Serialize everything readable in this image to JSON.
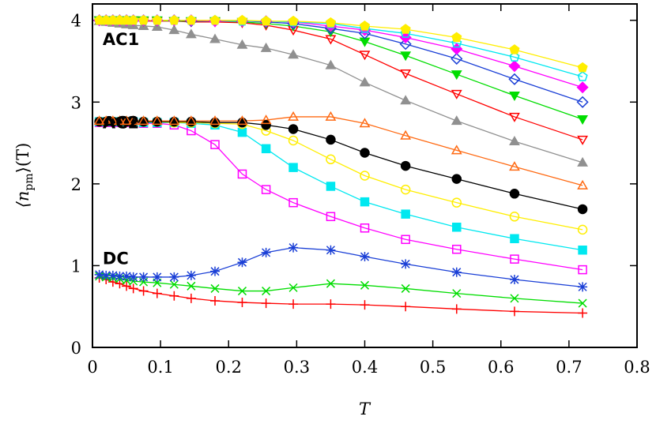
{
  "chart_data": {
    "type": "line",
    "xlabel": "T",
    "ylabel": [
      "⟨n",
      "pm",
      "⟩(T)"
    ],
    "annotations": [
      {
        "text": "AC1",
        "x": 0.015,
        "y": 3.7
      },
      {
        "text": "AC2",
        "x": 0.015,
        "y": 2.68
      },
      {
        "text": "DC",
        "x": 0.015,
        "y": 1.02
      }
    ],
    "xlim": [
      0,
      0.8
    ],
    "ylim": [
      0,
      4.2
    ],
    "xticks": [
      0,
      0.1,
      0.2,
      0.3,
      0.4,
      0.5,
      0.6,
      0.7,
      0.8
    ],
    "yticks": [
      0,
      1,
      2,
      3,
      4
    ],
    "grid": false,
    "x": [
      0.01,
      0.02,
      0.03,
      0.04,
      0.05,
      0.06,
      0.075,
      0.095,
      0.12,
      0.145,
      0.18,
      0.22,
      0.255,
      0.295,
      0.35,
      0.4,
      0.46,
      0.535,
      0.62,
      0.72
    ],
    "series": [
      {
        "color": "#ff0000",
        "marker": "plus",
        "values": [
          0.85,
          0.83,
          0.8,
          0.78,
          0.75,
          0.72,
          0.69,
          0.66,
          0.63,
          0.6,
          0.57,
          0.55,
          0.54,
          0.53,
          0.53,
          0.52,
          0.5,
          0.47,
          0.44,
          0.42
        ]
      },
      {
        "color": "#00dd00",
        "marker": "cross",
        "values": [
          0.87,
          0.86,
          0.85,
          0.84,
          0.82,
          0.81,
          0.8,
          0.79,
          0.77,
          0.75,
          0.72,
          0.69,
          0.69,
          0.73,
          0.78,
          0.76,
          0.72,
          0.66,
          0.6,
          0.54
        ]
      },
      {
        "color": "#1a3fd6",
        "marker": "star",
        "values": [
          0.89,
          0.88,
          0.88,
          0.87,
          0.87,
          0.86,
          0.86,
          0.86,
          0.86,
          0.88,
          0.93,
          1.04,
          1.16,
          1.22,
          1.19,
          1.11,
          1.02,
          0.92,
          0.83,
          0.74
        ]
      },
      {
        "color": "#ff00ff",
        "marker": "square-open",
        "values": [
          2.75,
          2.75,
          2.75,
          2.75,
          2.75,
          2.75,
          2.74,
          2.74,
          2.72,
          2.65,
          2.48,
          2.12,
          1.93,
          1.77,
          1.6,
          1.46,
          1.32,
          1.2,
          1.08,
          0.95
        ]
      },
      {
        "color": "#00e8f0",
        "marker": "square",
        "values": [
          2.76,
          2.76,
          2.76,
          2.76,
          2.76,
          2.76,
          2.75,
          2.75,
          2.75,
          2.74,
          2.72,
          2.63,
          2.43,
          2.2,
          1.97,
          1.78,
          1.63,
          1.47,
          1.33,
          1.19
        ]
      },
      {
        "color": "#ffee00",
        "marker": "circle-open",
        "values": [
          2.76,
          2.76,
          2.76,
          2.76,
          2.76,
          2.76,
          2.76,
          2.76,
          2.75,
          2.75,
          2.74,
          2.73,
          2.65,
          2.53,
          2.3,
          2.1,
          1.93,
          1.77,
          1.6,
          1.44
        ]
      },
      {
        "color": "#000000",
        "marker": "circle",
        "values": [
          2.76,
          2.76,
          2.76,
          2.76,
          2.76,
          2.76,
          2.76,
          2.76,
          2.76,
          2.76,
          2.75,
          2.75,
          2.72,
          2.67,
          2.54,
          2.38,
          2.22,
          2.06,
          1.88,
          1.69
        ]
      },
      {
        "color": "#ff6a13",
        "marker": "triangle-open",
        "values": [
          2.77,
          2.77,
          2.77,
          2.77,
          2.77,
          2.77,
          2.77,
          2.77,
          2.77,
          2.77,
          2.77,
          2.77,
          2.78,
          2.82,
          2.82,
          2.74,
          2.59,
          2.41,
          2.21,
          1.98
        ]
      },
      {
        "color": "#909090",
        "marker": "triangle",
        "values": [
          3.99,
          3.98,
          3.97,
          3.96,
          3.95,
          3.94,
          3.93,
          3.92,
          3.88,
          3.83,
          3.77,
          3.7,
          3.66,
          3.58,
          3.45,
          3.24,
          3.02,
          2.77,
          2.52,
          2.26
        ]
      },
      {
        "color": "#ff0000",
        "marker": "triangle-down-open",
        "values": [
          4,
          4,
          4,
          4,
          4,
          4,
          3.99,
          3.99,
          3.99,
          3.98,
          3.98,
          3.97,
          3.94,
          3.88,
          3.77,
          3.58,
          3.35,
          3.1,
          2.82,
          2.54
        ]
      },
      {
        "color": "#00dd00",
        "marker": "triangle-down",
        "values": [
          4,
          4,
          4,
          4,
          4,
          4,
          4,
          4,
          3.99,
          3.99,
          3.99,
          3.98,
          3.96,
          3.93,
          3.86,
          3.74,
          3.57,
          3.34,
          3.08,
          2.79
        ]
      },
      {
        "color": "#1a3fd6",
        "marker": "diamond-open",
        "values": [
          4,
          4,
          4,
          4,
          4,
          4,
          4,
          4,
          4,
          3.99,
          3.99,
          3.99,
          3.98,
          3.96,
          3.9,
          3.84,
          3.71,
          3.53,
          3.28,
          3.0
        ]
      },
      {
        "color": "#ff00ff",
        "marker": "diamond",
        "values": [
          4,
          4,
          4,
          4,
          4,
          4,
          4,
          4,
          4,
          4,
          3.99,
          3.99,
          3.99,
          3.98,
          3.93,
          3.88,
          3.79,
          3.65,
          3.44,
          3.18
        ]
      },
      {
        "color": "#00e8f0",
        "marker": "pentagon-open",
        "values": [
          4,
          4,
          4,
          4,
          4,
          4,
          4,
          4,
          4,
          4,
          4,
          3.99,
          3.99,
          3.98,
          3.96,
          3.9,
          3.84,
          3.72,
          3.55,
          3.31
        ]
      },
      {
        "color": "#ffee00",
        "marker": "pentagon",
        "values": [
          4,
          4,
          4,
          4,
          4,
          4,
          4,
          4,
          4,
          4,
          4,
          4,
          3.99,
          3.99,
          3.97,
          3.93,
          3.89,
          3.79,
          3.64,
          3.42
        ]
      }
    ]
  }
}
